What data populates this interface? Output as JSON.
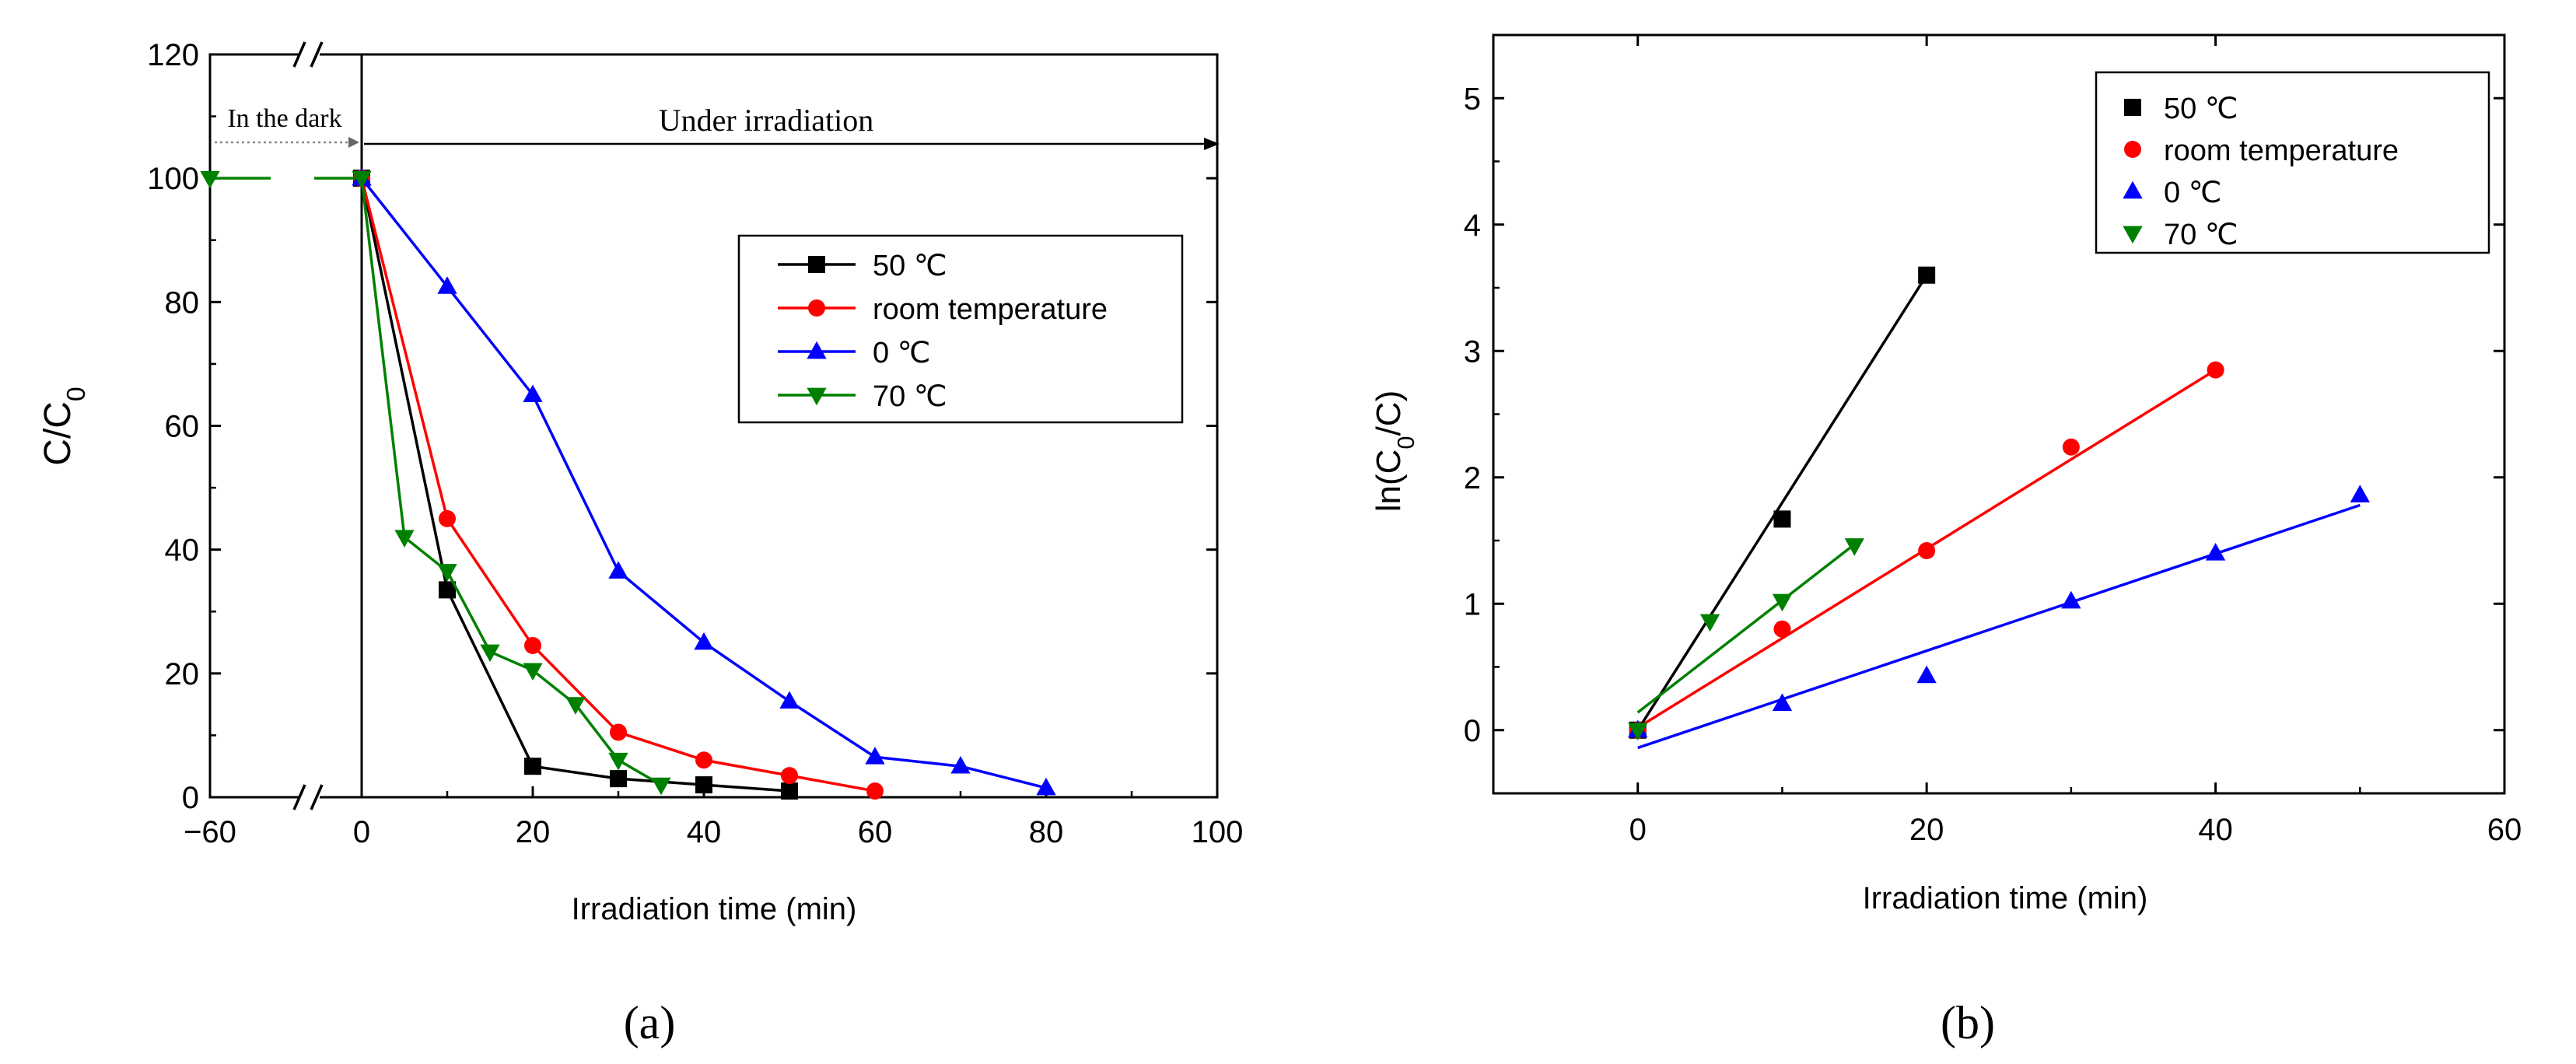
{
  "chart_data": [
    {
      "panel_label": "(a)",
      "type": "line",
      "xlabel": "Irradiation time (min)",
      "ylabel": "C/C0",
      "xlim": [
        -60,
        100
      ],
      "ylim": [
        0,
        120
      ],
      "axis_break": true,
      "x_ticks": [
        -60,
        0,
        20,
        40,
        60,
        80,
        100
      ],
      "y_ticks": [
        0,
        20,
        40,
        60,
        80,
        100,
        120
      ],
      "x_tick_labels": [
        "−60",
        "0",
        "20",
        "40",
        "60",
        "80",
        "100"
      ],
      "annotations": {
        "dark": "In the dark",
        "irradiation": "Under irradiation"
      },
      "legend_position": "top-right",
      "series": [
        {
          "name": "50 ℃",
          "color": "#000000",
          "marker": "square",
          "x": [
            0,
            10,
            20,
            30,
            40,
            50
          ],
          "y": [
            100,
            33.5,
            5,
            3,
            2,
            1
          ]
        },
        {
          "name": "room temperature",
          "color": "#ff0000",
          "marker": "circle",
          "x": [
            0,
            10,
            20,
            30,
            40,
            50,
            60
          ],
          "y": [
            100,
            45,
            24.5,
            10.5,
            6,
            3.5,
            1
          ]
        },
        {
          "name": "0 ℃",
          "color": "#0000ff",
          "marker": "triangle-up",
          "x": [
            0,
            10,
            20,
            30,
            40,
            50,
            60,
            70,
            80
          ],
          "y": [
            100,
            82.5,
            65,
            36.5,
            25,
            15.5,
            6.5,
            5,
            1.5
          ]
        },
        {
          "name": "70 ℃",
          "color": "#008000",
          "marker": "triangle-down",
          "x": [
            -60,
            0,
            5,
            10,
            15,
            20,
            25,
            30,
            35
          ],
          "y": [
            100,
            100,
            42,
            36.5,
            23.5,
            20.5,
            15,
            6,
            2
          ]
        }
      ]
    },
    {
      "panel_label": "(b)",
      "type": "scatter",
      "xlabel": "Irradiation time (min)",
      "ylabel": "ln(C0/C)",
      "xlim": [
        -10,
        60
      ],
      "ylim": [
        -0.5,
        5.5
      ],
      "x_ticks": [
        0,
        20,
        40,
        60
      ],
      "y_ticks": [
        0,
        1,
        2,
        3,
        4,
        5
      ],
      "legend_position": "top-right",
      "series": [
        {
          "name": "50 ℃",
          "color": "#000000",
          "marker": "square",
          "x": [
            0,
            10,
            20
          ],
          "y": [
            0,
            1.67,
            3.6
          ],
          "fit": [
            [
              0,
              0
            ],
            [
              20,
              3.6
            ]
          ]
        },
        {
          "name": "room temperature",
          "color": "#ff0000",
          "marker": "circle",
          "x": [
            0,
            10,
            20,
            30,
            40
          ],
          "y": [
            0,
            0.8,
            1.42,
            2.24,
            2.85
          ],
          "fit": [
            [
              0,
              0.02
            ],
            [
              40,
              2.85
            ]
          ]
        },
        {
          "name": "0 ℃",
          "color": "#0000ff",
          "marker": "triangle-up",
          "x": [
            0,
            10,
            20,
            30,
            40,
            50
          ],
          "y": [
            0,
            0.21,
            0.43,
            1.02,
            1.4,
            1.86
          ],
          "fit": [
            [
              0,
              -0.14
            ],
            [
              50,
              1.78
            ]
          ]
        },
        {
          "name": "70 ℃",
          "color": "#008000",
          "marker": "triangle-down",
          "x": [
            0,
            5,
            10,
            15
          ],
          "y": [
            0,
            0.86,
            1.02,
            1.46
          ],
          "fit": [
            [
              0,
              0.14
            ],
            [
              15,
              1.47
            ]
          ]
        }
      ]
    }
  ]
}
